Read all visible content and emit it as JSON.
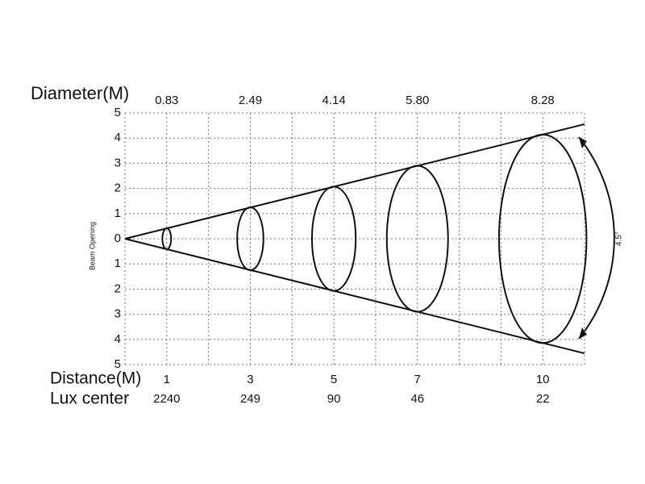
{
  "chart_data": {
    "type": "beam",
    "title": "Diameter(M)",
    "y_label": "Beam Opening",
    "x_label": "Distance(M)",
    "lux_label": "Lux center",
    "angle_label": "4.5°",
    "x": [
      1,
      3,
      5,
      7,
      10
    ],
    "diameters": [
      0.83,
      2.49,
      4.14,
      5.8,
      8.28
    ],
    "diameter_labels": [
      "0.83",
      "2.49",
      "4.14",
      "5.80",
      "8.28"
    ],
    "lux": [
      2240,
      249,
      90,
      46,
      22
    ],
    "xlim": [
      0,
      11
    ],
    "xticks": [
      0,
      1,
      2,
      3,
      4,
      5,
      6,
      7,
      8,
      9,
      10,
      11
    ],
    "ylim": [
      -5,
      5
    ],
    "yticks": [
      5,
      4,
      3,
      2,
      1,
      0,
      {
        "value": -1,
        "label": "1"
      },
      {
        "value": -2,
        "label": "2"
      },
      {
        "value": -3,
        "label": "3"
      },
      {
        "value": -4,
        "label": "4"
      },
      {
        "value": -5,
        "label": "5"
      }
    ],
    "grid": true
  }
}
